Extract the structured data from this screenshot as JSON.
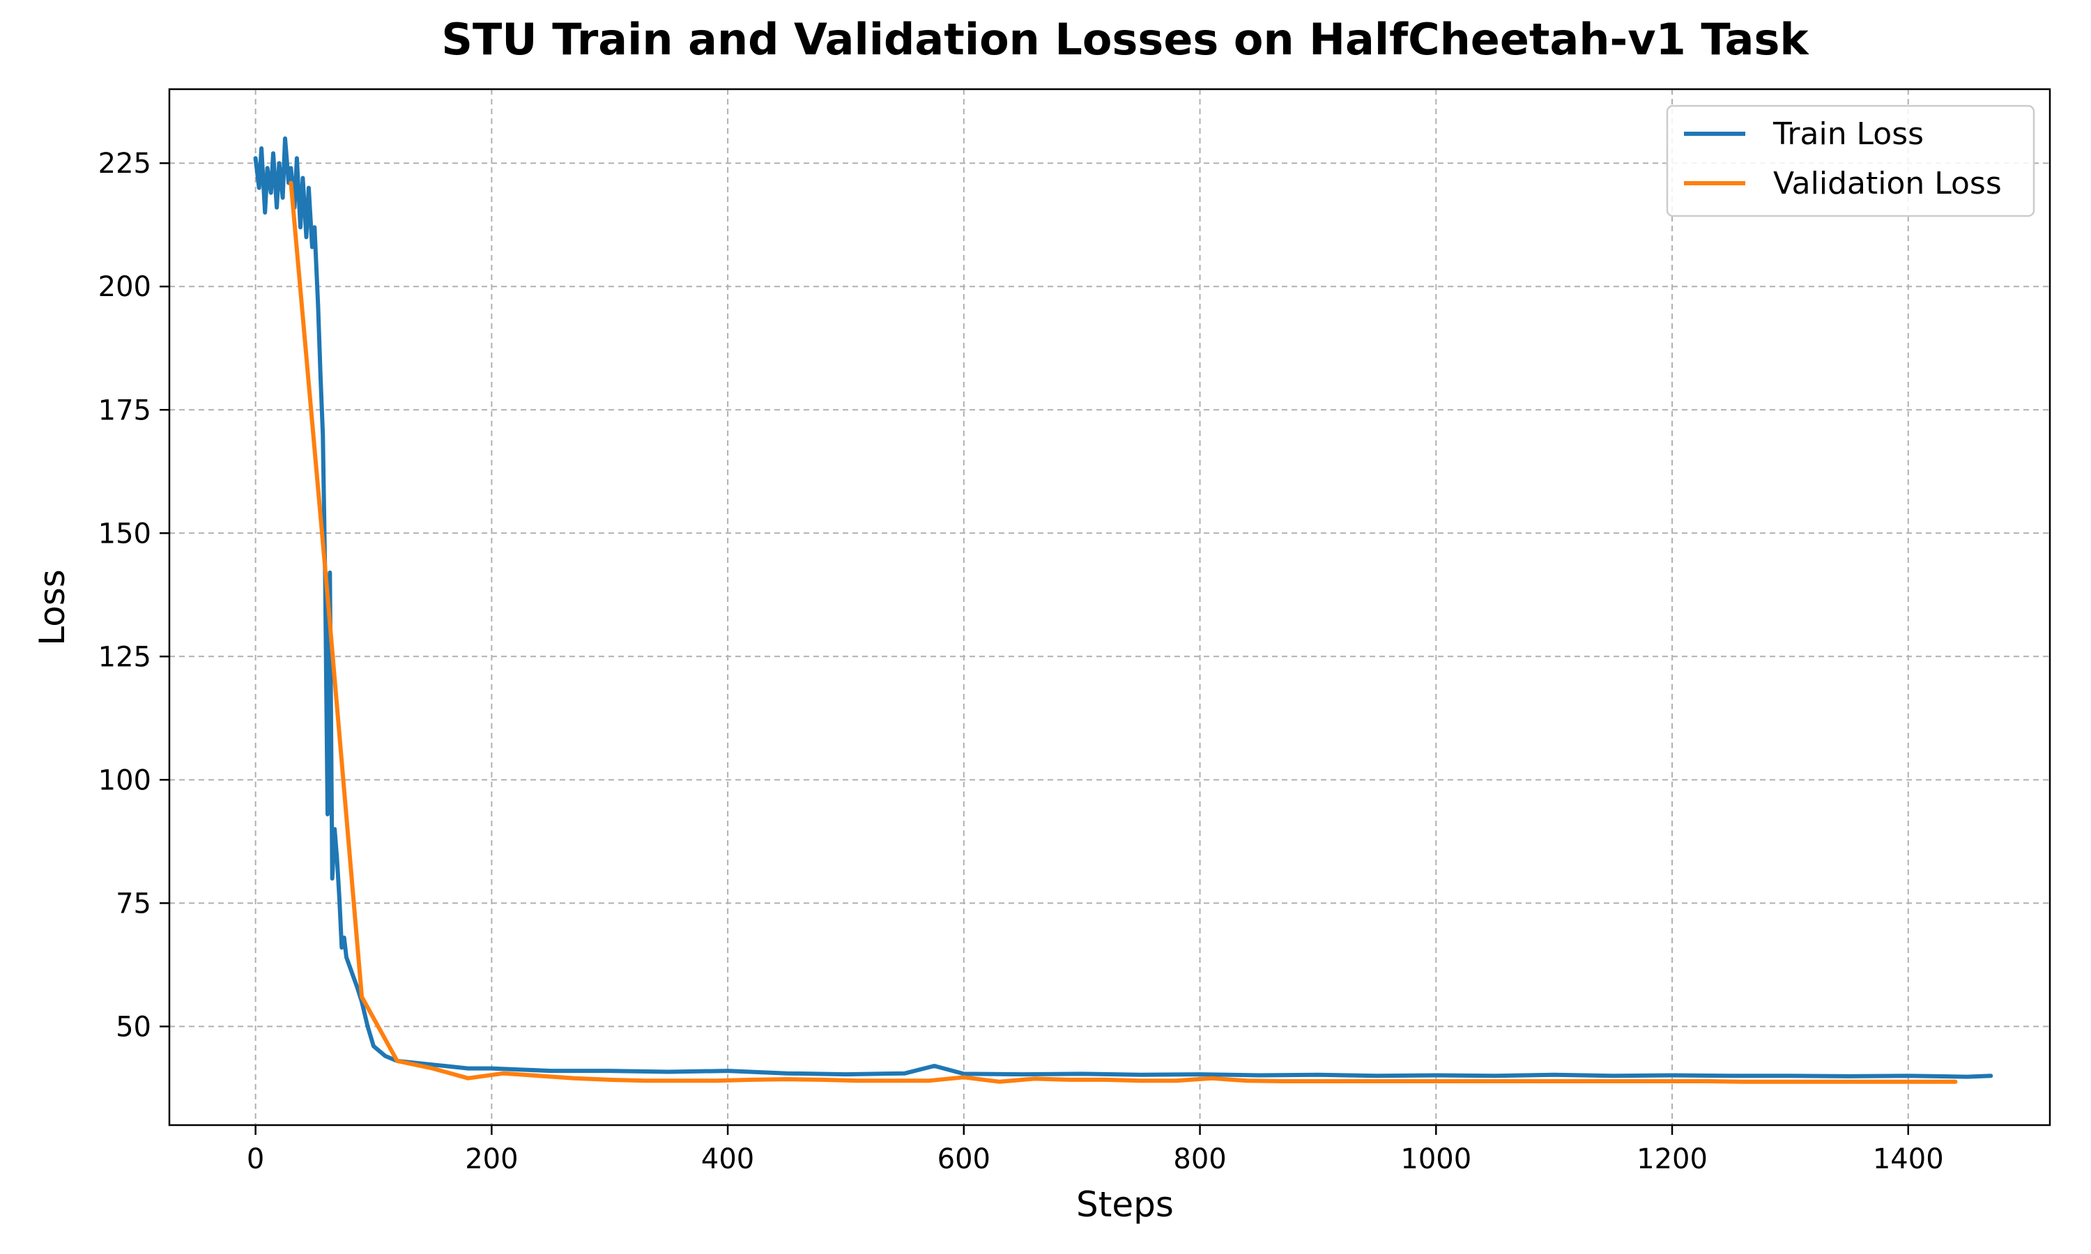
{
  "chart_data": {
    "type": "line",
    "title": "STU Train and Validation Losses on HalfCheetah-v1 Task",
    "xlabel": "Steps",
    "ylabel": "Loss",
    "xlim": [
      -73,
      1520
    ],
    "ylim": [
      30,
      240
    ],
    "xticks": [
      0,
      200,
      400,
      600,
      800,
      1000,
      1200,
      1400
    ],
    "yticks": [
      50,
      75,
      100,
      125,
      150,
      175,
      200,
      225
    ],
    "grid": true,
    "legend_position": "top-right",
    "colors": {
      "train": "#1f77b4",
      "validation": "#ff7f0e"
    },
    "series": [
      {
        "name": "Train Loss",
        "x": [
          0,
          3,
          5,
          8,
          10,
          13,
          15,
          18,
          20,
          23,
          25,
          28,
          30,
          33,
          35,
          38,
          40,
          43,
          45,
          48,
          50,
          53,
          55,
          57,
          59,
          61,
          63,
          65,
          67,
          69,
          71,
          73,
          75,
          77,
          80,
          83,
          86,
          90,
          95,
          100,
          110,
          120,
          140,
          160,
          180,
          200,
          250,
          300,
          350,
          400,
          450,
          500,
          550,
          575,
          600,
          650,
          700,
          750,
          800,
          850,
          900,
          950,
          1000,
          1050,
          1100,
          1150,
          1200,
          1250,
          1300,
          1350,
          1400,
          1450,
          1470
        ],
        "y": [
          226,
          220,
          228,
          215,
          224,
          219,
          227,
          216,
          225,
          218,
          230,
          221,
          224,
          216,
          226,
          212,
          222,
          210,
          220,
          208,
          212,
          196,
          182,
          170,
          140,
          93,
          142,
          80,
          90,
          84,
          76,
          66,
          68,
          64,
          62,
          60,
          58,
          55,
          50,
          46,
          44,
          43,
          42.5,
          42,
          41.5,
          41.5,
          41,
          41,
          40.8,
          41,
          40.5,
          40.3,
          40.5,
          42,
          40.4,
          40.3,
          40.4,
          40.2,
          40.3,
          40.1,
          40.2,
          40,
          40.1,
          40,
          40.2,
          40,
          40.1,
          40,
          40,
          39.9,
          40,
          39.8,
          40
        ]
      },
      {
        "name": "Validation Loss",
        "x": [
          30,
          60,
          90,
          120,
          150,
          180,
          210,
          240,
          270,
          300,
          330,
          360,
          390,
          420,
          450,
          480,
          510,
          540,
          570,
          600,
          630,
          660,
          690,
          720,
          750,
          780,
          810,
          840,
          870,
          900,
          930,
          960,
          990,
          1020,
          1050,
          1080,
          1110,
          1140,
          1170,
          1200,
          1230,
          1260,
          1290,
          1320,
          1350,
          1380,
          1410,
          1440
        ],
        "y": [
          221,
          140,
          56,
          43,
          41.5,
          39.5,
          40.5,
          40,
          39.5,
          39.2,
          39,
          39,
          39,
          39.2,
          39.3,
          39.2,
          39,
          39,
          39,
          39.7,
          38.8,
          39.4,
          39.2,
          39.2,
          39,
          39,
          39.5,
          39,
          38.9,
          38.9,
          38.9,
          38.9,
          38.9,
          38.9,
          38.9,
          38.9,
          38.9,
          38.9,
          38.9,
          38.9,
          38.9,
          38.8,
          38.8,
          38.8,
          38.8,
          38.8,
          38.8,
          38.8
        ]
      }
    ]
  }
}
